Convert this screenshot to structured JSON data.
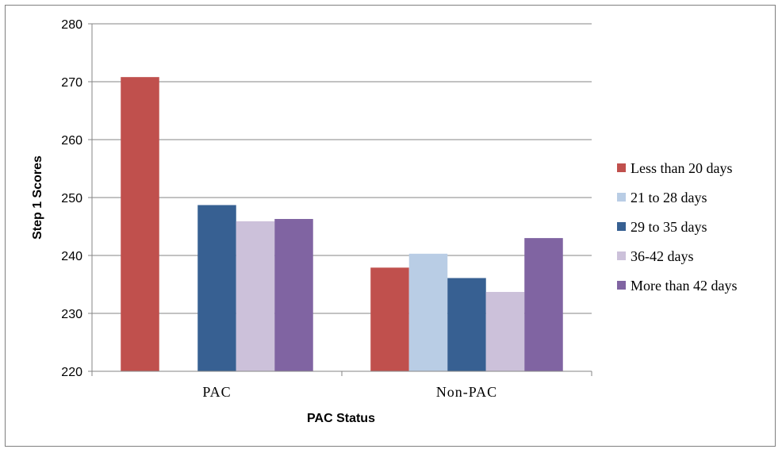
{
  "chart_data": {
    "type": "bar",
    "title": "",
    "xlabel": "PAC Status",
    "ylabel": "Step 1 Scores",
    "categories": [
      "PAC",
      "Non-PAC"
    ],
    "ylim": [
      220,
      280
    ],
    "yticks": [
      220,
      230,
      240,
      250,
      260,
      270,
      280
    ],
    "grid": true,
    "legend_position": "right",
    "series": [
      {
        "name": "Less than 20 days",
        "color": "#c0504d",
        "values": [
          270.8,
          237.9
        ]
      },
      {
        "name": "21 to 28 days",
        "color": "#b9cde5",
        "values": [
          null,
          240.3
        ]
      },
      {
        "name": "29 to 35 days",
        "color": "#376092",
        "values": [
          248.7,
          236.1
        ]
      },
      {
        "name": "36-42 days",
        "color": "#ccc1da",
        "values": [
          245.9,
          233.7
        ]
      },
      {
        "name": "More than 42 days",
        "color": "#8064a2",
        "values": [
          246.3,
          243.0
        ]
      }
    ]
  }
}
